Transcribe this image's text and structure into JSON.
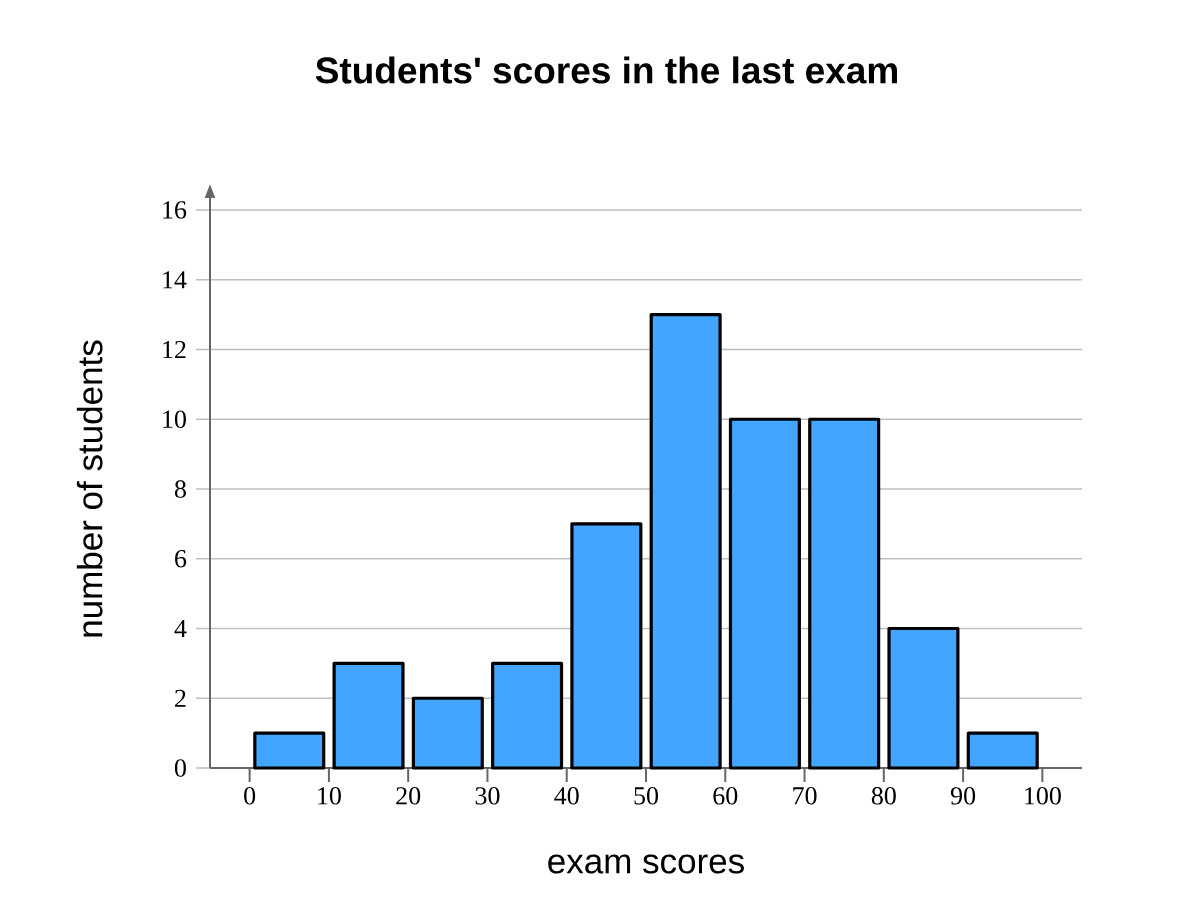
{
  "chart_data": {
    "type": "histogram",
    "title": "Students' scores in the last exam",
    "xlabel": "exam scores",
    "ylabel": "number of students",
    "bins": [
      0,
      10,
      20,
      30,
      40,
      50,
      60,
      70,
      80,
      90,
      100
    ],
    "values": [
      1,
      3,
      2,
      3,
      7,
      13,
      10,
      10,
      4,
      1
    ],
    "color": "#42a5ff",
    "xlim": [
      -5,
      105
    ],
    "ylim": [
      0,
      16
    ],
    "xticks": [
      0,
      10,
      20,
      30,
      40,
      50,
      60,
      70,
      80,
      90,
      100
    ],
    "yticks": [
      0,
      2,
      4,
      6,
      8,
      10,
      12,
      14,
      16
    ],
    "grid": "y"
  }
}
